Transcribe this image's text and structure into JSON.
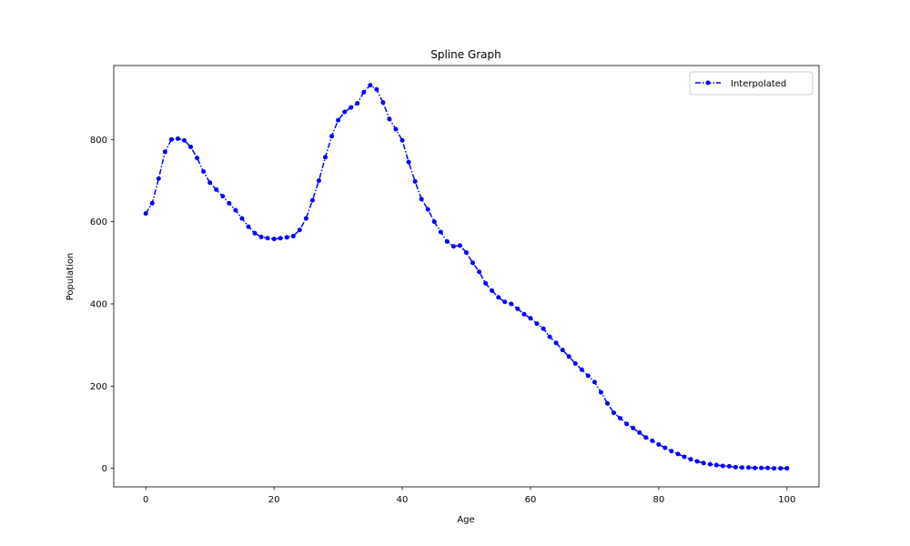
{
  "chart_data": {
    "type": "line",
    "title": "Spline Graph",
    "xlabel": "Age",
    "ylabel": "Population",
    "xlim": [
      -5,
      105
    ],
    "ylim": [
      -45,
      980
    ],
    "xticks": [
      0,
      20,
      40,
      60,
      80,
      100
    ],
    "yticks": [
      0,
      200,
      400,
      600,
      800
    ],
    "grid": false,
    "legend_position": "top-right",
    "series": [
      {
        "name": "Interpolated",
        "color": "#0000ff",
        "line_style": "dashdot",
        "marker": "circle",
        "x": [
          0,
          1,
          2,
          3,
          4,
          5,
          6,
          7,
          8,
          9,
          10,
          11,
          12,
          13,
          14,
          15,
          16,
          17,
          18,
          19,
          20,
          21,
          22,
          23,
          24,
          25,
          26,
          27,
          28,
          29,
          30,
          31,
          32,
          33,
          34,
          35,
          36,
          37,
          38,
          39,
          40,
          41,
          42,
          43,
          44,
          45,
          46,
          47,
          48,
          49,
          50,
          51,
          52,
          53,
          54,
          55,
          56,
          57,
          58,
          59,
          60,
          61,
          62,
          63,
          64,
          65,
          66,
          67,
          68,
          69,
          70,
          71,
          72,
          73,
          74,
          75,
          76,
          77,
          78,
          79,
          80,
          81,
          82,
          83,
          84,
          85,
          86,
          87,
          88,
          89,
          90,
          91,
          92,
          93,
          94,
          95,
          96,
          97,
          98,
          99,
          100
        ],
        "values": [
          620,
          645,
          705,
          770,
          800,
          802,
          798,
          782,
          755,
          722,
          695,
          678,
          662,
          645,
          628,
          608,
          588,
          572,
          563,
          560,
          558,
          560,
          562,
          565,
          580,
          608,
          652,
          700,
          757,
          808,
          847,
          867,
          878,
          888,
          915,
          932,
          922,
          890,
          850,
          825,
          798,
          745,
          698,
          655,
          630,
          600,
          575,
          552,
          540,
          542,
          525,
          500,
          478,
          450,
          432,
          416,
          405,
          400,
          388,
          375,
          365,
          352,
          340,
          320,
          305,
          288,
          272,
          255,
          240,
          225,
          210,
          185,
          158,
          135,
          122,
          108,
          98,
          87,
          75,
          67,
          58,
          50,
          42,
          35,
          28,
          22,
          17,
          13,
          10,
          8,
          6,
          5,
          3,
          2,
          2,
          1,
          1,
          1,
          0,
          0,
          0
        ]
      }
    ]
  }
}
